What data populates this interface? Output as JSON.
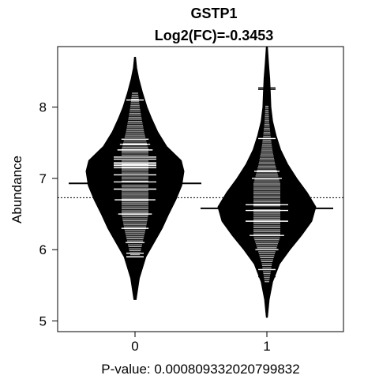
{
  "chart_data": {
    "type": "beanplot",
    "title": "GSTP1",
    "subtitle": "Log2(FC)=-0.3453",
    "xlabel": "P-value: 0.000809332020799832",
    "ylabel": "Abundance",
    "ylim": [
      4.85,
      8.85
    ],
    "yticks": [
      5,
      6,
      7,
      8
    ],
    "categories": [
      "0",
      "1"
    ],
    "overall_mean": 6.73,
    "groups": [
      {
        "name": "0",
        "mean": 6.93,
        "min": 5.3,
        "max": 8.7,
        "density": [
          [
            5.3,
            0.02
          ],
          [
            5.6,
            0.08
          ],
          [
            5.9,
            0.2
          ],
          [
            6.1,
            0.35
          ],
          [
            6.3,
            0.5
          ],
          [
            6.5,
            0.62
          ],
          [
            6.7,
            0.75
          ],
          [
            6.9,
            0.86
          ],
          [
            7.1,
            0.9
          ],
          [
            7.25,
            0.85
          ],
          [
            7.45,
            0.58
          ],
          [
            7.65,
            0.42
          ],
          [
            7.85,
            0.3
          ],
          [
            8.0,
            0.22
          ],
          [
            8.2,
            0.14
          ],
          [
            8.4,
            0.07
          ],
          [
            8.55,
            0.03
          ],
          [
            8.7,
            0.01
          ]
        ],
        "highlight_values": [
          8.1,
          7.55,
          7.48,
          7.4,
          7.3,
          7.27,
          7.22,
          7.2,
          7.18,
          7.15,
          7.05,
          6.95,
          6.85,
          6.7,
          6.5,
          6.3,
          6.1,
          5.95,
          5.9
        ]
      },
      {
        "name": "1",
        "mean": 6.58,
        "min": 5.05,
        "max": 8.85,
        "density": [
          [
            5.05,
            0.01
          ],
          [
            5.3,
            0.04
          ],
          [
            5.55,
            0.1
          ],
          [
            5.8,
            0.22
          ],
          [
            6.0,
            0.4
          ],
          [
            6.2,
            0.6
          ],
          [
            6.4,
            0.78
          ],
          [
            6.6,
            0.85
          ],
          [
            6.8,
            0.7
          ],
          [
            7.0,
            0.52
          ],
          [
            7.2,
            0.36
          ],
          [
            7.4,
            0.24
          ],
          [
            7.6,
            0.16
          ],
          [
            7.8,
            0.1
          ],
          [
            8.0,
            0.07
          ],
          [
            8.2,
            0.06
          ],
          [
            8.4,
            0.05
          ],
          [
            8.6,
            0.03
          ],
          [
            8.85,
            0.01
          ]
        ],
        "highlight_values": [
          8.27,
          8.25,
          7.56,
          7.1,
          7.0,
          6.63,
          6.55,
          6.4,
          6.2,
          6.0,
          5.72,
          5.62
        ]
      }
    ]
  }
}
